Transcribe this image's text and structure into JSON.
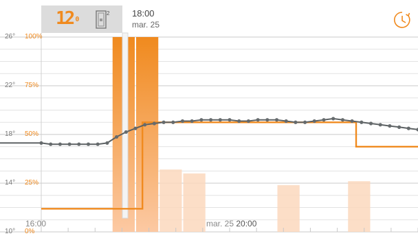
{
  "header": {
    "temp_value": "12",
    "temp_unit": "0",
    "device_icon": "thermostat-device-icon",
    "device_sup": "2",
    "time": "18:00",
    "date": "mar. 25"
  },
  "toolbar": {
    "history_icon": "clock-icon"
  },
  "axes": {
    "temp_ticks": [
      "26°",
      "22°",
      "18°",
      "14°",
      "10°"
    ],
    "percent_ticks": [
      "100%",
      "75%",
      "50%",
      "25%",
      "0%"
    ],
    "x_labels": [
      {
        "text": "16:00",
        "bold": ""
      },
      {
        "text": "mar. 25 ",
        "bold": "20:00"
      }
    ]
  },
  "colors": {
    "accent": "#f08a1e",
    "temp_line": "#555a5c",
    "bar_light": "#fbd8bd",
    "grid": "#cccccc"
  },
  "chart_data": {
    "type": "bar",
    "temp_range": [
      10,
      26
    ],
    "percent_range": [
      0,
      100
    ],
    "bars_percent": [
      0,
      0,
      0,
      100,
      100,
      32,
      30,
      0,
      0,
      0,
      24,
      0,
      0,
      26,
      0,
      0
    ],
    "bars_highlight": [
      false,
      false,
      false,
      true,
      true,
      false,
      false,
      false,
      false,
      false,
      false,
      false,
      false,
      false,
      false,
      false
    ],
    "temperature": [
      17.3,
      17.2,
      17.2,
      17.2,
      17.2,
      17.2,
      17.2,
      17.3,
      17.8,
      18.2,
      18.5,
      18.8,
      18.9,
      19.0,
      19.0,
      19.1,
      19.1,
      19.2,
      19.2,
      19.2,
      19.2,
      19.1,
      19.1,
      19.2,
      19.2,
      19.2,
      19.1,
      19.0,
      19.0,
      19.1,
      19.2,
      19.3,
      19.2,
      19.1,
      19.0,
      18.9,
      18.8,
      18.7,
      18.6,
      18.5,
      18.4
    ],
    "setpoint": [
      {
        "x": 0,
        "v": 11.9
      },
      {
        "x": 0.2687,
        "v": 11.9
      },
      {
        "x": 0.2687,
        "v": 19.0
      },
      {
        "x": 0.8358,
        "v": 19.0
      },
      {
        "x": 0.8358,
        "v": 17.0
      },
      {
        "x": 1,
        "v": 17.0
      }
    ],
    "cursor_x": 0.2075
  }
}
